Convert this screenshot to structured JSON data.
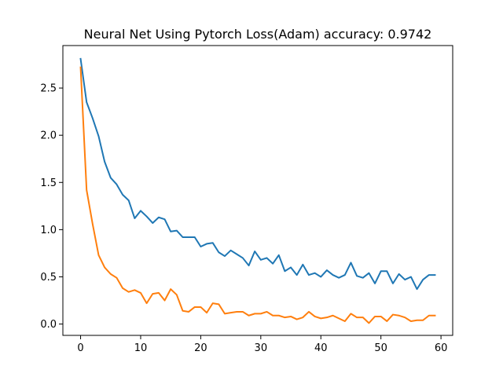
{
  "chart_data": {
    "type": "line",
    "title": "Neural Net Using Pytorch Loss(Adam)  accuracy: 0.9742",
    "xlabel": "",
    "ylabel": "",
    "xlim": [
      -2.95,
      61.95
    ],
    "ylim": [
      -0.12,
      2.95
    ],
    "x_ticks": [
      0,
      10,
      20,
      30,
      40,
      50,
      60
    ],
    "y_ticks": [
      0.0,
      0.5,
      1.0,
      1.5,
      2.0,
      2.5
    ],
    "x_tick_labels": [
      "0",
      "10",
      "20",
      "30",
      "40",
      "50",
      "60"
    ],
    "y_tick_labels": [
      "0.0",
      "0.5",
      "1.0",
      "1.5",
      "2.0",
      "2.5"
    ],
    "grid": false,
    "legend": "none",
    "series": [
      {
        "color": "#1f77b4",
        "values": [
          2.81,
          2.35,
          2.18,
          1.99,
          1.72,
          1.55,
          1.48,
          1.37,
          1.31,
          1.12,
          1.2,
          1.14,
          1.07,
          1.13,
          1.11,
          0.98,
          0.99,
          0.92,
          0.92,
          0.92,
          0.82,
          0.85,
          0.86,
          0.76,
          0.72,
          0.78,
          0.74,
          0.7,
          0.62,
          0.77,
          0.68,
          0.7,
          0.64,
          0.73,
          0.56,
          0.6,
          0.52,
          0.63,
          0.52,
          0.54,
          0.5,
          0.57,
          0.52,
          0.49,
          0.52,
          0.65,
          0.51,
          0.49,
          0.54,
          0.43,
          0.56,
          0.56,
          0.43,
          0.53,
          0.47,
          0.5,
          0.37,
          0.47,
          0.52,
          0.52
        ]
      },
      {
        "color": "#ff7f0e",
        "values": [
          2.72,
          1.42,
          1.06,
          0.73,
          0.6,
          0.53,
          0.49,
          0.38,
          0.34,
          0.36,
          0.33,
          0.22,
          0.32,
          0.33,
          0.25,
          0.37,
          0.31,
          0.14,
          0.13,
          0.18,
          0.18,
          0.12,
          0.22,
          0.21,
          0.11,
          0.12,
          0.13,
          0.13,
          0.09,
          0.11,
          0.11,
          0.13,
          0.09,
          0.09,
          0.07,
          0.08,
          0.05,
          0.07,
          0.13,
          0.08,
          0.06,
          0.07,
          0.09,
          0.06,
          0.03,
          0.11,
          0.07,
          0.07,
          0.01,
          0.08,
          0.08,
          0.03,
          0.1,
          0.09,
          0.07,
          0.03,
          0.04,
          0.04,
          0.09,
          0.09
        ]
      }
    ]
  }
}
